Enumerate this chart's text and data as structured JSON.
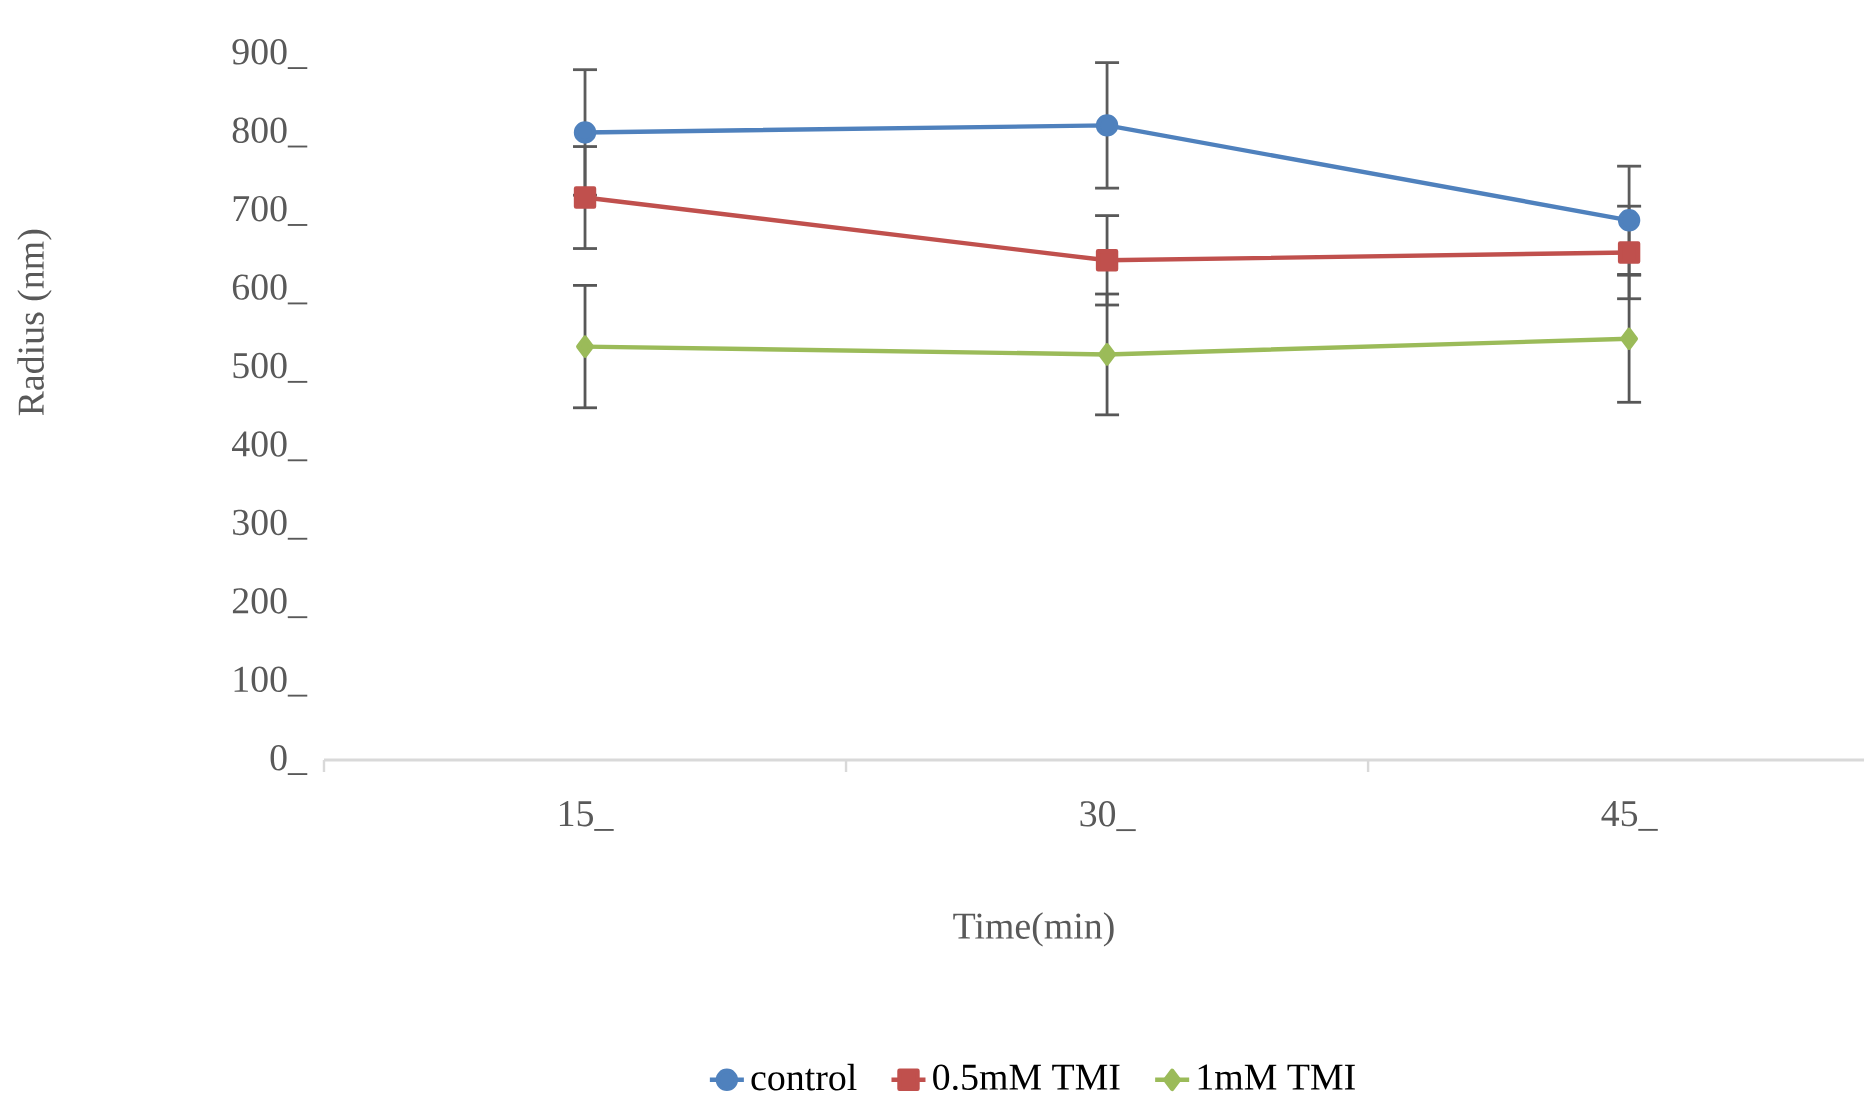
{
  "chart_data": {
    "type": "line",
    "xlabel": "Time(min)",
    "ylabel": "Radius (nm)",
    "categories": [
      "15_",
      "30_",
      "45_"
    ],
    "ylim": [
      0,
      900
    ],
    "yticks": [
      {
        "value": 0,
        "label": "0_"
      },
      {
        "value": 100,
        "label": "100_"
      },
      {
        "value": 200,
        "label": "200_"
      },
      {
        "value": 300,
        "label": "300_"
      },
      {
        "value": 400,
        "label": "400_"
      },
      {
        "value": 500,
        "label": "500_"
      },
      {
        "value": 600,
        "label": "600_"
      },
      {
        "value": 700,
        "label": "700_"
      },
      {
        "value": 800,
        "label": "800_"
      },
      {
        "value": 900,
        "label": "900_"
      }
    ],
    "grid": false,
    "legend": "bottom",
    "line_style": "solid",
    "series": [
      {
        "name": "control",
        "color": "#4f81bd",
        "marker": "circle",
        "values": [
          800,
          809,
          688
        ],
        "errors": [
          80,
          80,
          69
        ]
      },
      {
        "name": "0.5mM TMI",
        "color": "#c0504d",
        "marker": "square",
        "values": [
          717,
          637,
          647
        ],
        "errors": [
          65,
          57,
          59
        ]
      },
      {
        "name": "1mM TMI",
        "color": "#9bbb59",
        "marker": "diamond",
        "values": [
          527,
          517,
          537
        ],
        "errors": [
          78,
          77,
          81
        ]
      }
    ]
  }
}
